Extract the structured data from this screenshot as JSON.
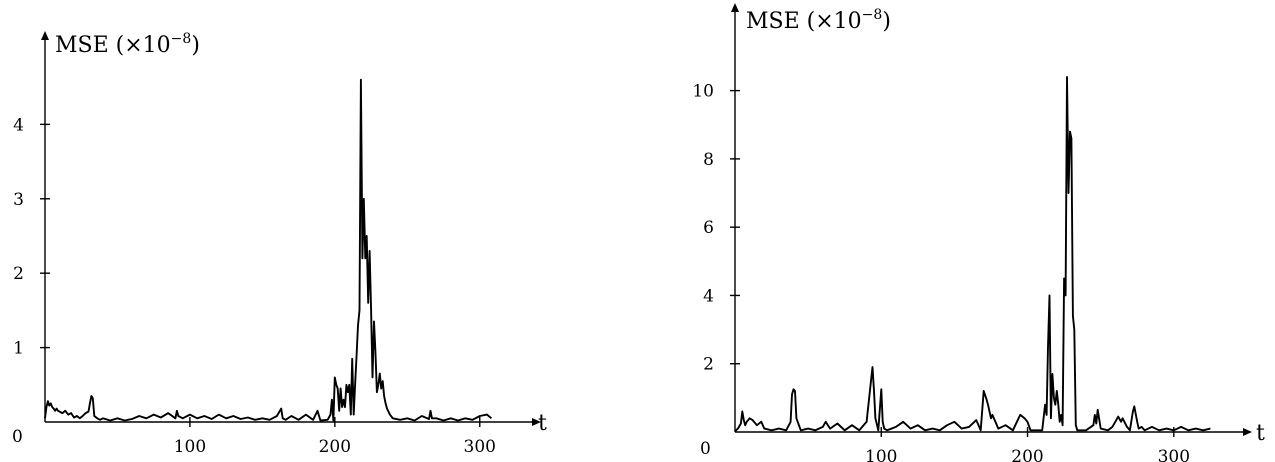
{
  "chart_data": [
    {
      "type": "line",
      "ylabel": "MSE",
      "ylabel_suffix": "(×10",
      "ylabel_exponent": "−8",
      "ylabel_close": ")",
      "xlabel": "t",
      "origin_label": "0",
      "xlim": [
        0,
        325
      ],
      "ylim": [
        0,
        4.65
      ],
      "x_ticks": [
        100,
        200,
        300
      ],
      "y_ticks": [
        1,
        2,
        3,
        4
      ],
      "series": [
        {
          "x": [
            0,
            1,
            2,
            3,
            4,
            5,
            6,
            7,
            8,
            9,
            10,
            12,
            14,
            16,
            18,
            20,
            22,
            24,
            26,
            28,
            30,
            31,
            32,
            33,
            34,
            36,
            38,
            40,
            45,
            50,
            55,
            60,
            65,
            70,
            75,
            80,
            85,
            90,
            91,
            92,
            95,
            100,
            105,
            110,
            115,
            120,
            125,
            130,
            135,
            140,
            145,
            150,
            155,
            160,
            163,
            164,
            166,
            170,
            175,
            180,
            185,
            188,
            190,
            195,
            197,
            198,
            199,
            200,
            201,
            202,
            203,
            204,
            205,
            206,
            207,
            208,
            209,
            210,
            211,
            212,
            213,
            214,
            215,
            216,
            217,
            218,
            219,
            220,
            221,
            222,
            223,
            224,
            225,
            226,
            227,
            228,
            229,
            230,
            231,
            232,
            233,
            234,
            235,
            236,
            238,
            240,
            245,
            250,
            255,
            260,
            265,
            266,
            267,
            270,
            275,
            280,
            285,
            290,
            295,
            300,
            305,
            308
          ],
          "y": [
            0.05,
            0.2,
            0.28,
            0.22,
            0.25,
            0.2,
            0.18,
            0.15,
            0.18,
            0.15,
            0.14,
            0.12,
            0.15,
            0.1,
            0.12,
            0.06,
            0.08,
            0.05,
            0.08,
            0.12,
            0.14,
            0.25,
            0.35,
            0.32,
            0.08,
            0.05,
            0.03,
            0.05,
            0.02,
            0.05,
            0.02,
            0.04,
            0.08,
            0.05,
            0.1,
            0.06,
            0.12,
            0.05,
            0.15,
            0.08,
            0.05,
            0.1,
            0.05,
            0.08,
            0.04,
            0.1,
            0.05,
            0.08,
            0.04,
            0.06,
            0.03,
            0.05,
            0.03,
            0.08,
            0.18,
            0.05,
            0.03,
            0.08,
            0.03,
            0.1,
            0.03,
            0.15,
            0.02,
            0.03,
            0.1,
            0.3,
            0.02,
            0.6,
            0.5,
            0.45,
            0.15,
            0.45,
            0.2,
            0.3,
            0.2,
            0.5,
            0.4,
            0.5,
            0.1,
            0.85,
            0.1,
            0.5,
            0.9,
            1.3,
            1.5,
            4.6,
            2.2,
            3.0,
            2.2,
            2.5,
            1.6,
            2.3,
            1.5,
            0.6,
            1.35,
            0.95,
            0.4,
            0.5,
            0.65,
            0.45,
            0.55,
            0.35,
            0.25,
            0.18,
            0.1,
            0.05,
            0.03,
            0.05,
            0.02,
            0.08,
            0.04,
            0.15,
            0.05,
            0.05,
            0.02,
            0.05,
            0.02,
            0.05,
            0.03,
            0.08,
            0.1,
            0.05
          ]
        }
      ]
    },
    {
      "type": "line",
      "ylabel": "MSE",
      "ylabel_suffix": "(×10",
      "ylabel_exponent": "−8",
      "ylabel_close": ")",
      "xlabel": "t",
      "origin_label": "0",
      "xlim": [
        0,
        335
      ],
      "ylim": [
        0,
        11.6
      ],
      "x_ticks": [
        100,
        200,
        300
      ],
      "y_ticks": [
        2,
        4,
        6,
        8,
        10
      ],
      "series": [
        {
          "x": [
            0,
            2,
            4,
            5,
            6,
            7,
            8,
            10,
            12,
            15,
            18,
            20,
            25,
            30,
            35,
            38,
            39,
            40,
            41,
            42,
            45,
            50,
            55,
            60,
            62,
            65,
            70,
            75,
            80,
            85,
            90,
            93,
            94,
            95,
            96,
            98,
            100,
            101,
            102,
            104,
            110,
            115,
            120,
            125,
            130,
            135,
            140,
            145,
            150,
            155,
            160,
            165,
            168,
            170,
            172,
            173,
            174,
            175,
            176,
            178,
            180,
            185,
            190,
            195,
            198,
            200,
            202,
            205,
            210,
            212,
            213,
            214,
            215,
            216,
            217,
            218,
            219,
            220,
            221,
            222,
            223,
            224,
            225,
            226,
            227,
            228,
            229,
            230,
            231,
            232,
            233,
            234,
            235,
            237,
            240,
            245,
            246,
            247,
            248,
            250,
            255,
            258,
            260,
            262,
            264,
            265,
            268,
            270,
            272,
            273,
            275,
            276,
            278,
            280,
            285,
            290,
            295,
            300,
            305,
            310,
            315,
            320,
            325
          ],
          "y": [
            0.02,
            0.1,
            0.25,
            0.6,
            0.35,
            0.2,
            0.3,
            0.4,
            0.35,
            0.2,
            0.3,
            0.1,
            0.05,
            0.1,
            0.05,
            0.3,
            1.1,
            1.25,
            1.2,
            0.4,
            0.05,
            0.1,
            0.05,
            0.15,
            0.3,
            0.1,
            0.25,
            0.05,
            0.2,
            0.05,
            0.3,
            1.5,
            1.9,
            1.2,
            0.4,
            0.05,
            1.25,
            0.3,
            0.1,
            0.05,
            0.15,
            0.3,
            0.1,
            0.2,
            0.05,
            0.1,
            0.05,
            0.2,
            0.3,
            0.1,
            0.15,
            0.35,
            0.05,
            1.2,
            0.95,
            0.8,
            0.6,
            0.4,
            0.5,
            0.3,
            0.1,
            0.2,
            0.05,
            0.5,
            0.4,
            0.3,
            0.05,
            0.05,
            0.05,
            0.8,
            0.5,
            2.5,
            4.0,
            0.4,
            1.7,
            1.0,
            0.8,
            1.2,
            0.8,
            0.3,
            0.5,
            0.2,
            4.5,
            4.0,
            10.4,
            7.0,
            8.8,
            8.6,
            3.4,
            3.0,
            0.2,
            0.05,
            0.05,
            0.05,
            0.05,
            0.2,
            0.5,
            0.25,
            0.65,
            0.1,
            0.05,
            0.15,
            0.3,
            0.45,
            0.3,
            0.4,
            0.15,
            0.05,
            0.6,
            0.75,
            0.3,
            0.1,
            0.15,
            0.05,
            0.15,
            0.05,
            0.1,
            0.05,
            0.15,
            0.05,
            0.1,
            0.05,
            0.1
          ]
        }
      ]
    }
  ]
}
